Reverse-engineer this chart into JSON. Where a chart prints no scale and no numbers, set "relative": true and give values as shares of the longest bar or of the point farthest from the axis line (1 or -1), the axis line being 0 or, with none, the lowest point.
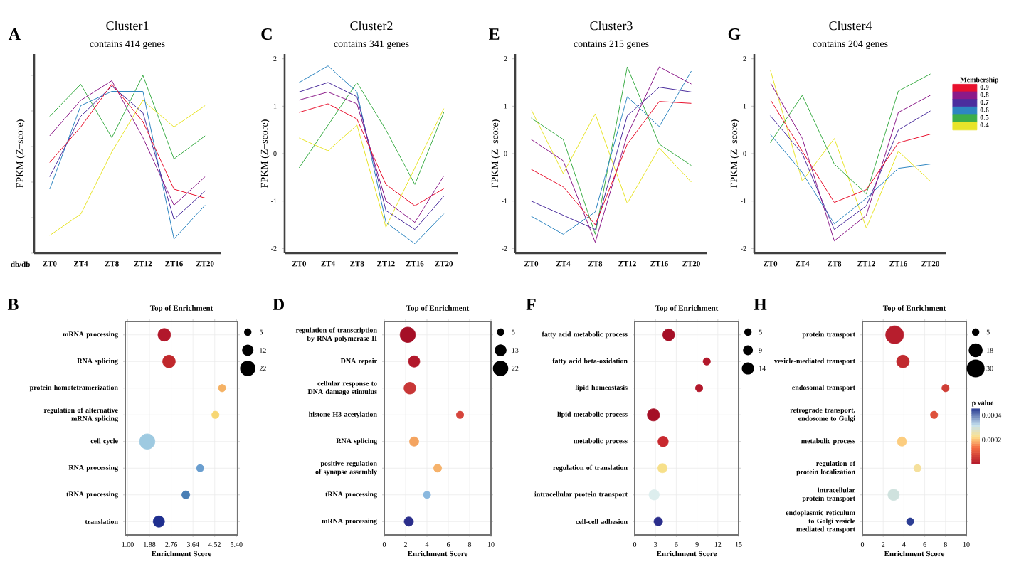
{
  "chart_data": [
    {
      "type": "line",
      "title": "Cluster1",
      "subtitle": "contains 414 genes",
      "ylabel": "FPKM (Z−score)",
      "annotations": [
        "A",
        "db/db"
      ],
      "categories": [
        "ZT0",
        "ZT4",
        "ZT8",
        "ZT12",
        "ZT16",
        "ZT20"
      ],
      "relative": true,
      "series": [
        {
          "color": "#e8112d",
          "values": [
            0.51,
            0.71,
            0.95,
            0.74,
            0.36,
            0.31
          ]
        },
        {
          "color": "#8b1a89",
          "values": [
            0.66,
            0.86,
            0.97,
            0.65,
            0.27,
            0.43
          ]
        },
        {
          "color": "#4b2e9e",
          "values": [
            0.43,
            0.77,
            0.94,
            0.79,
            0.19,
            0.35
          ]
        },
        {
          "color": "#2e86c1",
          "values": [
            0.36,
            0.83,
            0.91,
            0.91,
            0.08,
            0.27
          ]
        },
        {
          "color": "#3dae48",
          "values": [
            0.77,
            0.95,
            0.65,
            1.0,
            0.53,
            0.66
          ]
        },
        {
          "color": "#e8e42a",
          "values": [
            0.1,
            0.22,
            0.57,
            0.86,
            0.71,
            0.83
          ]
        }
      ]
    },
    {
      "type": "line",
      "title": "Cluster2",
      "subtitle": "contains 341 genes",
      "ylabel": "FPKM (Z−score)",
      "annotations": [
        "C"
      ],
      "categories": [
        "ZT0",
        "ZT4",
        "ZT8",
        "ZT12",
        "ZT16",
        "ZT20"
      ],
      "ylim": [
        -2.1,
        2.1
      ],
      "yticks": [
        -2,
        -1,
        0,
        1,
        2
      ],
      "series": [
        {
          "color": "#e8112d",
          "values": [
            0.87,
            1.05,
            0.73,
            -0.65,
            -1.1,
            -0.74
          ]
        },
        {
          "color": "#8b1a89",
          "values": [
            1.13,
            1.3,
            1.05,
            -1.0,
            -1.45,
            -0.47
          ]
        },
        {
          "color": "#4b2e9e",
          "values": [
            1.3,
            1.5,
            1.2,
            -1.2,
            -1.6,
            -0.9
          ]
        },
        {
          "color": "#2e86c1",
          "values": [
            1.5,
            1.85,
            1.3,
            -1.45,
            -1.9,
            -1.27
          ]
        },
        {
          "color": "#3dae48",
          "values": [
            -0.3,
            0.6,
            1.5,
            0.5,
            -0.65,
            0.87
          ]
        },
        {
          "color": "#e8e42a",
          "values": [
            0.33,
            0.06,
            0.6,
            -1.55,
            -0.3,
            0.95
          ]
        }
      ]
    },
    {
      "type": "line",
      "title": "Cluster3",
      "subtitle": "contains 215 genes",
      "ylabel": "FPKM (Z−score)",
      "annotations": [
        "E"
      ],
      "categories": [
        "ZT0",
        "ZT4",
        "ZT8",
        "ZT12",
        "ZT16",
        "ZT20"
      ],
      "ylim": [
        -2.1,
        2.1
      ],
      "yticks": [
        -2,
        -1,
        0,
        1,
        2
      ],
      "series": [
        {
          "color": "#e8112d",
          "values": [
            -0.33,
            -0.7,
            -1.5,
            0.2,
            1.1,
            1.06
          ]
        },
        {
          "color": "#8b1a89",
          "values": [
            0.3,
            -0.15,
            -1.87,
            0.39,
            1.83,
            1.47
          ]
        },
        {
          "color": "#4b2e9e",
          "values": [
            -1.0,
            -1.3,
            -1.6,
            0.8,
            1.4,
            1.3
          ]
        },
        {
          "color": "#2e86c1",
          "values": [
            -1.32,
            -1.7,
            -1.23,
            1.2,
            0.57,
            1.74
          ]
        },
        {
          "color": "#3dae48",
          "values": [
            0.75,
            0.3,
            -1.7,
            1.83,
            0.2,
            -0.25
          ]
        },
        {
          "color": "#e8e42a",
          "values": [
            0.93,
            -0.42,
            0.84,
            -1.05,
            0.12,
            -0.6
          ]
        }
      ]
    },
    {
      "type": "line",
      "title": "Cluster4",
      "subtitle": "contains 204 genes",
      "ylabel": "FPKM (Z−score)",
      "annotations": [
        "G"
      ],
      "categories": [
        "ZT0",
        "ZT4",
        "ZT8",
        "ZT12",
        "ZT16",
        "ZT20"
      ],
      "ylim": [
        -2.1,
        2.1
      ],
      "yticks": [
        -2,
        -1,
        0,
        1,
        2
      ],
      "legend": "right",
      "legend_title": "Membership",
      "series": [
        {
          "name": "0.9",
          "color": "#e8112d",
          "values": [
            1.14,
            0.05,
            -1.03,
            -0.76,
            0.23,
            0.41
          ]
        },
        {
          "name": "0.8",
          "color": "#8b1a89",
          "values": [
            1.5,
            0.32,
            -1.84,
            -1.3,
            0.87,
            1.23
          ]
        },
        {
          "name": "0.7",
          "color": "#4b2e9e",
          "values": [
            0.8,
            0.0,
            -1.6,
            -1.1,
            0.5,
            0.9
          ]
        },
        {
          "name": "0.6",
          "color": "#2e86c1",
          "values": [
            0.41,
            -0.4,
            -1.48,
            -0.94,
            -0.31,
            -0.22
          ]
        },
        {
          "name": "0.5",
          "color": "#3dae48",
          "values": [
            0.23,
            1.23,
            -0.22,
            -0.85,
            1.32,
            1.68
          ]
        },
        {
          "name": "0.4",
          "color": "#e8e42a",
          "values": [
            1.77,
            -0.58,
            0.32,
            -1.57,
            0.05,
            -0.58
          ]
        }
      ]
    },
    {
      "type": "bubble",
      "orientation": "horizontal",
      "title": "Top of Enrichment",
      "xlabel": "Enrichment Score",
      "annotations": [
        "B"
      ],
      "grid": true,
      "categories": [
        "mRNA processing",
        "RNA splicing",
        "protein homotetramerization",
        "regulation of alternative mRNA splicing",
        "cell cycle",
        "RNA processing",
        "tRNA processing",
        "translation"
      ],
      "values": [
        2.48,
        2.67,
        4.82,
        4.55,
        1.79,
        3.93,
        3.35,
        2.26
      ],
      "sizes": [
        15,
        15,
        5,
        5,
        22,
        5,
        6,
        12
      ],
      "size_legend": [
        5,
        12,
        22
      ],
      "colors": [
        "#b2182b",
        "#c0282c",
        "#f5b265",
        "#f7d774",
        "#9ecae1",
        "#6a9ecf",
        "#4a7fb5",
        "#1f2f8f"
      ],
      "xlim": [
        0.9,
        5.45
      ],
      "xticks": [
        {
          "value": 1,
          "label": "1.00"
        },
        {
          "value": 1.88,
          "label": "1.88"
        },
        {
          "value": 2.76,
          "label": "2.76"
        },
        {
          "value": 3.64,
          "label": "3.64"
        },
        {
          "value": 4.52,
          "label": "4.52"
        },
        {
          "value": 5.4,
          "label": "5.40"
        }
      ]
    },
    {
      "type": "bubble",
      "orientation": "horizontal",
      "title": "Top of Enrichment",
      "xlabel": "Enrichment Score",
      "annotations": [
        "D"
      ],
      "grid": true,
      "categories": [
        "regulation of transcription by RNA polymerase II",
        "DNA repair",
        "cellular response to DNA damage stimulus",
        "histone H3 acetylation",
        "RNA splicing",
        "positive regulation of synapse assembly",
        "tRNA processing",
        "mRNA processing"
      ],
      "values": [
        2.2,
        2.8,
        2.4,
        7.1,
        2.8,
        5.0,
        4.0,
        2.3
      ],
      "sizes": [
        22,
        12,
        13,
        5,
        8,
        6,
        5,
        8
      ],
      "size_legend": [
        5,
        13,
        22
      ],
      "colors": [
        "#a50f26",
        "#b2182b",
        "#c83737",
        "#d6453c",
        "#f4a460",
        "#f6b26b",
        "#8ab8de",
        "#2b2e8c"
      ],
      "xlim": [
        0,
        10
      ],
      "xticks": [
        0,
        2,
        4,
        6,
        8,
        10
      ]
    },
    {
      "type": "bubble",
      "orientation": "horizontal",
      "title": "Top of Enrichment",
      "xlabel": "Enrichment Score",
      "annotations": [
        "F"
      ],
      "grid": true,
      "categories": [
        "fatty acid metabolic process",
        "fatty acid beta-oxidation",
        "lipid homeostasis",
        "lipid metabolic process",
        "metabolic process",
        "regulation of translation",
        "intracellular protein transport",
        "cell-cell adhesion"
      ],
      "values": [
        4.9,
        10.4,
        9.3,
        2.7,
        4.1,
        4.0,
        2.8,
        3.4
      ],
      "sizes": [
        13,
        5,
        5,
        14,
        10,
        8,
        10,
        7
      ],
      "size_legend": [
        5,
        9,
        14
      ],
      "colors": [
        "#a50f26",
        "#b2182b",
        "#b2182b",
        "#a50f26",
        "#c8282e",
        "#f7e08a",
        "#ddeeee",
        "#2b2e8c"
      ],
      "xlim": [
        0,
        15
      ],
      "xticks": [
        0,
        3,
        6,
        9,
        12,
        15
      ]
    },
    {
      "type": "bubble",
      "orientation": "horizontal",
      "title": "Top of Enrichment",
      "xlabel": "Enrichment Score",
      "annotations": [
        "H"
      ],
      "grid": true,
      "categories": [
        "protein transport",
        "vesicle-mediated transport",
        "endosomal transport",
        "retrograde transport, endosome to Golgi",
        "metabolic process",
        "regulation of protein localization",
        "intracellular protein transport",
        "endoplasmic reticulum to Golgi vesicle mediated transport"
      ],
      "values": [
        3.1,
        3.9,
        8.0,
        6.9,
        3.8,
        5.3,
        3.0,
        4.6
      ],
      "sizes": [
        30,
        15,
        5,
        5,
        8,
        5,
        12,
        5
      ],
      "size_legend": [
        5,
        18,
        30
      ],
      "cvalues": [
        1e-05,
        3e-05,
        6e-05,
        9e-05,
        0.00021,
        0.00024,
        0.0003,
        0.00045
      ],
      "clim": [
        0,
        0.00045
      ],
      "cticks": [
        0.0002,
        0.0004
      ],
      "clabel": "p value",
      "xlim": [
        0,
        10
      ],
      "xticks": [
        0,
        2,
        4,
        6,
        8,
        10
      ]
    }
  ]
}
